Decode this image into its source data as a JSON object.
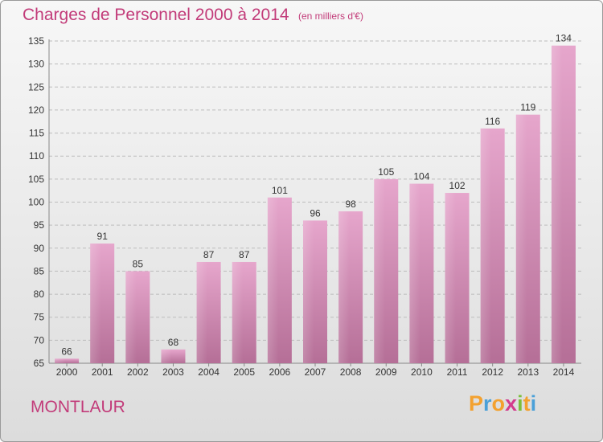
{
  "title": "Charges de Personnel 2000 à 2014",
  "subtitle": "(en milliers d'€)",
  "commune": "MONTLAUR",
  "logo": {
    "letters": [
      "P",
      "r",
      "o",
      "x",
      "i",
      "t",
      "i"
    ],
    "colors": [
      "#f3a12f",
      "#4aa0d8",
      "#f3a12f",
      "#d33b8d",
      "#7cbf3c",
      "#f3a12f",
      "#4aa0d8"
    ]
  },
  "colors": {
    "accent": "#c23b79",
    "bar_top": "#e6a6cc",
    "bar_bottom": "#b56f97"
  },
  "chart_data": {
    "type": "bar",
    "categories": [
      "2000",
      "2001",
      "2002",
      "2003",
      "2004",
      "2005",
      "2006",
      "2007",
      "2008",
      "2009",
      "2010",
      "2011",
      "2012",
      "2013",
      "2014"
    ],
    "values": [
      66,
      91,
      85,
      68,
      87,
      87,
      101,
      96,
      98,
      105,
      104,
      102,
      116,
      119,
      134
    ],
    "ylim": [
      65,
      135
    ],
    "yticks": [
      65,
      70,
      75,
      80,
      85,
      90,
      95,
      100,
      105,
      110,
      115,
      120,
      125,
      130,
      135
    ],
    "grid": true,
    "title": "Charges de Personnel 2000 à 2014",
    "xlabel": "",
    "ylabel": ""
  }
}
